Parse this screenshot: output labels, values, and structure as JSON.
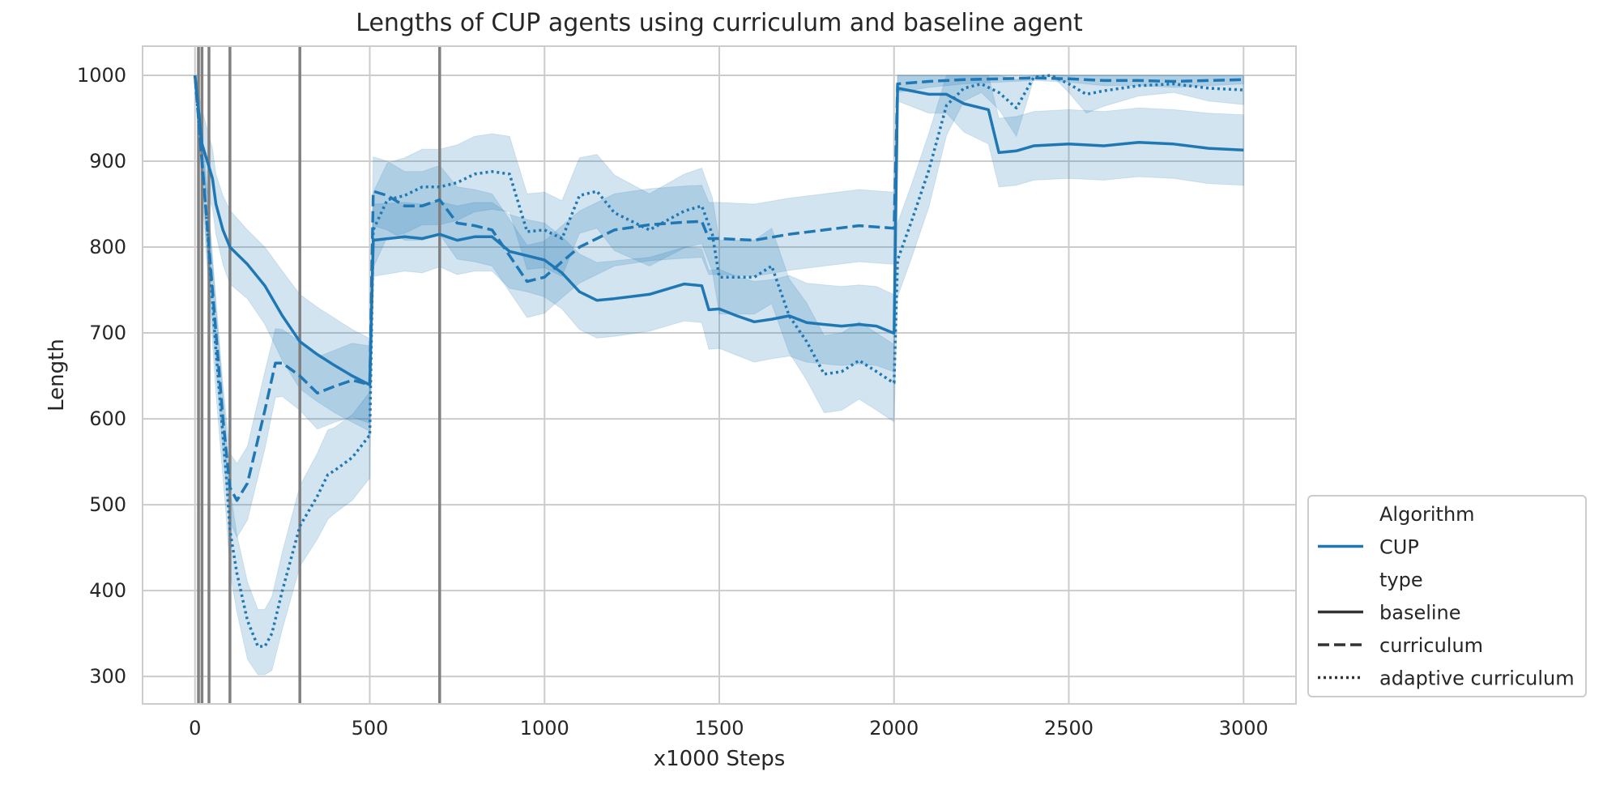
{
  "chart_data": {
    "type": "line",
    "title": "Lengths of CUP agents using curriculum and baseline agent",
    "xlabel": "x1000 Steps",
    "ylabel": "Length",
    "xlim": [
      -150,
      3150
    ],
    "ylim": [
      268,
      1034
    ],
    "xticks": [
      0,
      500,
      1000,
      1500,
      2000,
      2500,
      3000
    ],
    "yticks": [
      300,
      400,
      500,
      600,
      700,
      800,
      900,
      1000
    ],
    "grid": true,
    "colors": {
      "series": "#1f77b4",
      "band": "#1f77b4",
      "vline": "#808080",
      "grid": "#cccccc",
      "legend_key": "#333333"
    },
    "vertical_lines": [
      10,
      20,
      40,
      100,
      300,
      700
    ],
    "legend": {
      "position": "lower-right-outside",
      "items": [
        {
          "text": "Algorithm",
          "kind": "header"
        },
        {
          "text": "CUP",
          "kind": "line",
          "style": "solid",
          "color": "#1f77b4"
        },
        {
          "text": "type",
          "kind": "header"
        },
        {
          "text": "baseline",
          "kind": "line",
          "style": "solid",
          "color": "#333333"
        },
        {
          "text": "curriculum",
          "kind": "line",
          "style": "dashed",
          "color": "#333333"
        },
        {
          "text": "adaptive curriculum",
          "kind": "line",
          "style": "dotted",
          "color": "#333333"
        }
      ]
    },
    "series": [
      {
        "name": "baseline",
        "style": "solid",
        "x": [
          0,
          20,
          50,
          60,
          80,
          100,
          150,
          200,
          250,
          300,
          350,
          400,
          450,
          498,
          500,
          510,
          600,
          650,
          700,
          750,
          800,
          850,
          900,
          950,
          1000,
          1050,
          1100,
          1150,
          1200,
          1300,
          1400,
          1450,
          1470,
          1500,
          1550,
          1600,
          1650,
          1700,
          1750,
          1800,
          1850,
          1900,
          1950,
          1998,
          2000,
          2010,
          2100,
          2150,
          2200,
          2270,
          2300,
          2350,
          2400,
          2500,
          2600,
          2700,
          2800,
          2900,
          3000
        ],
        "y": [
          1000,
          920,
          880,
          850,
          820,
          800,
          780,
          755,
          720,
          690,
          675,
          662,
          650,
          640,
          640,
          808,
          812,
          810,
          815,
          808,
          812,
          812,
          795,
          790,
          785,
          770,
          748,
          738,
          740,
          745,
          757,
          755,
          727,
          728,
          720,
          713,
          716,
          720,
          712,
          710,
          708,
          710,
          708,
          700,
          700,
          985,
          978,
          978,
          967,
          960,
          910,
          912,
          918,
          920,
          918,
          922,
          920,
          915,
          913
        ],
        "upper": [
          1000,
          960,
          915,
          885,
          860,
          843,
          820,
          800,
          772,
          745,
          730,
          717,
          704,
          694,
          694,
          850,
          852,
          850,
          853,
          848,
          852,
          852,
          838,
          832,
          828,
          812,
          792,
          782,
          784,
          788,
          800,
          798,
          773,
          774,
          766,
          760,
          762,
          767,
          758,
          756,
          754,
          756,
          754,
          745,
          745,
          1000,
          1000,
          1000,
          1000,
          1000,
          950,
          952,
          958,
          960,
          958,
          962,
          960,
          956,
          954
        ],
        "lower": [
          1000,
          880,
          845,
          815,
          780,
          757,
          740,
          710,
          668,
          635,
          620,
          607,
          596,
          586,
          586,
          766,
          772,
          770,
          777,
          768,
          772,
          772,
          752,
          748,
          742,
          728,
          704,
          694,
          696,
          702,
          714,
          712,
          681,
          682,
          674,
          666,
          670,
          673,
          666,
          664,
          662,
          664,
          662,
          655,
          655,
          970,
          956,
          956,
          934,
          920,
          870,
          872,
          878,
          880,
          878,
          882,
          880,
          874,
          872
        ]
      },
      {
        "name": "curriculum",
        "style": "dashed",
        "x": [
          0,
          40,
          80,
          100,
          120,
          150,
          200,
          230,
          250,
          300,
          350,
          400,
          450,
          498,
          500,
          510,
          550,
          600,
          650,
          700,
          750,
          800,
          850,
          900,
          950,
          1000,
          1050,
          1100,
          1200,
          1300,
          1400,
          1450,
          1470,
          1500,
          1600,
          1700,
          1800,
          1900,
          1998,
          2000,
          2010,
          2100,
          2200,
          2300,
          2400,
          2500,
          2600,
          2700,
          2800,
          2900,
          3000
        ],
        "y": [
          1000,
          800,
          600,
          520,
          505,
          525,
          610,
          665,
          665,
          650,
          630,
          638,
          645,
          640,
          640,
          865,
          860,
          848,
          848,
          855,
          828,
          825,
          820,
          790,
          760,
          765,
          783,
          800,
          820,
          826,
          829,
          830,
          810,
          810,
          808,
          815,
          820,
          825,
          822,
          822,
          990,
          993,
          995,
          996,
          997,
          996,
          994,
          994,
          993,
          994,
          995
        ],
        "upper": [
          1000,
          840,
          640,
          560,
          548,
          568,
          655,
          705,
          704,
          690,
          672,
          680,
          688,
          685,
          685,
          905,
          900,
          888,
          888,
          895,
          870,
          867,
          862,
          832,
          802,
          807,
          825,
          842,
          862,
          868,
          871,
          872,
          852,
          852,
          850,
          857,
          862,
          867,
          864,
          864,
          1000,
          1000,
          1000,
          1000,
          1000,
          1000,
          1000,
          1000,
          1000,
          1000,
          1000
        ],
        "lower": [
          1000,
          760,
          560,
          480,
          462,
          482,
          565,
          625,
          626,
          610,
          588,
          596,
          602,
          595,
          595,
          825,
          820,
          808,
          808,
          815,
          786,
          783,
          778,
          748,
          718,
          723,
          741,
          758,
          778,
          784,
          787,
          788,
          768,
          768,
          766,
          773,
          778,
          783,
          780,
          780,
          980,
          986,
          990,
          992,
          994,
          992,
          988,
          988,
          986,
          988,
          990
        ]
      },
      {
        "name": "adaptive curriculum",
        "style": "dotted",
        "x": [
          0,
          30,
          60,
          90,
          100,
          120,
          150,
          180,
          200,
          220,
          250,
          300,
          350,
          380,
          400,
          450,
          498,
          500,
          510,
          550,
          600,
          650,
          700,
          750,
          800,
          850,
          900,
          950,
          1000,
          1050,
          1100,
          1150,
          1200,
          1300,
          1400,
          1450,
          1480,
          1500,
          1600,
          1650,
          1700,
          1750,
          1800,
          1850,
          1900,
          1950,
          1998,
          2000,
          2010,
          2050,
          2100,
          2150,
          2200,
          2250,
          2300,
          2350,
          2400,
          2450,
          2500,
          2550,
          2600,
          2700,
          2800,
          2900,
          3000
        ],
        "y": [
          1000,
          850,
          680,
          530,
          470,
          420,
          365,
          335,
          335,
          350,
          400,
          475,
          510,
          535,
          540,
          555,
          580,
          580,
          820,
          855,
          860,
          870,
          870,
          875,
          885,
          888,
          885,
          818,
          820,
          810,
          860,
          865,
          840,
          820,
          842,
          848,
          815,
          765,
          765,
          778,
          720,
          690,
          652,
          655,
          668,
          655,
          642,
          642,
          785,
          830,
          890,
          965,
          985,
          990,
          980,
          962,
          998,
          1000,
          990,
          978,
          982,
          988,
          990,
          985,
          983
        ],
        "upper": [
          1000,
          895,
          730,
          578,
          518,
          465,
          410,
          378,
          378,
          393,
          445,
          522,
          560,
          587,
          590,
          605,
          630,
          630,
          864,
          898,
          904,
          914,
          914,
          919,
          929,
          932,
          929,
          862,
          864,
          854,
          904,
          908,
          884,
          862,
          885,
          892,
          858,
          808,
          808,
          822,
          763,
          735,
          697,
          700,
          713,
          700,
          687,
          687,
          828,
          873,
          933,
          1000,
          1000,
          1000,
          1000,
          995,
          1000,
          1000,
          1000,
          1000,
          1000,
          1000,
          1000,
          1000,
          1000
        ],
        "lower": [
          1000,
          805,
          630,
          482,
          422,
          375,
          320,
          302,
          302,
          307,
          355,
          428,
          460,
          483,
          490,
          505,
          530,
          530,
          776,
          812,
          816,
          826,
          826,
          831,
          841,
          844,
          841,
          774,
          776,
          766,
          816,
          822,
          796,
          778,
          799,
          804,
          772,
          722,
          722,
          734,
          677,
          645,
          607,
          610,
          623,
          610,
          597,
          597,
          742,
          787,
          847,
          930,
          970,
          980,
          960,
          929,
          996,
          1000,
          980,
          956,
          964,
          976,
          980,
          970,
          966
        ]
      }
    ]
  }
}
